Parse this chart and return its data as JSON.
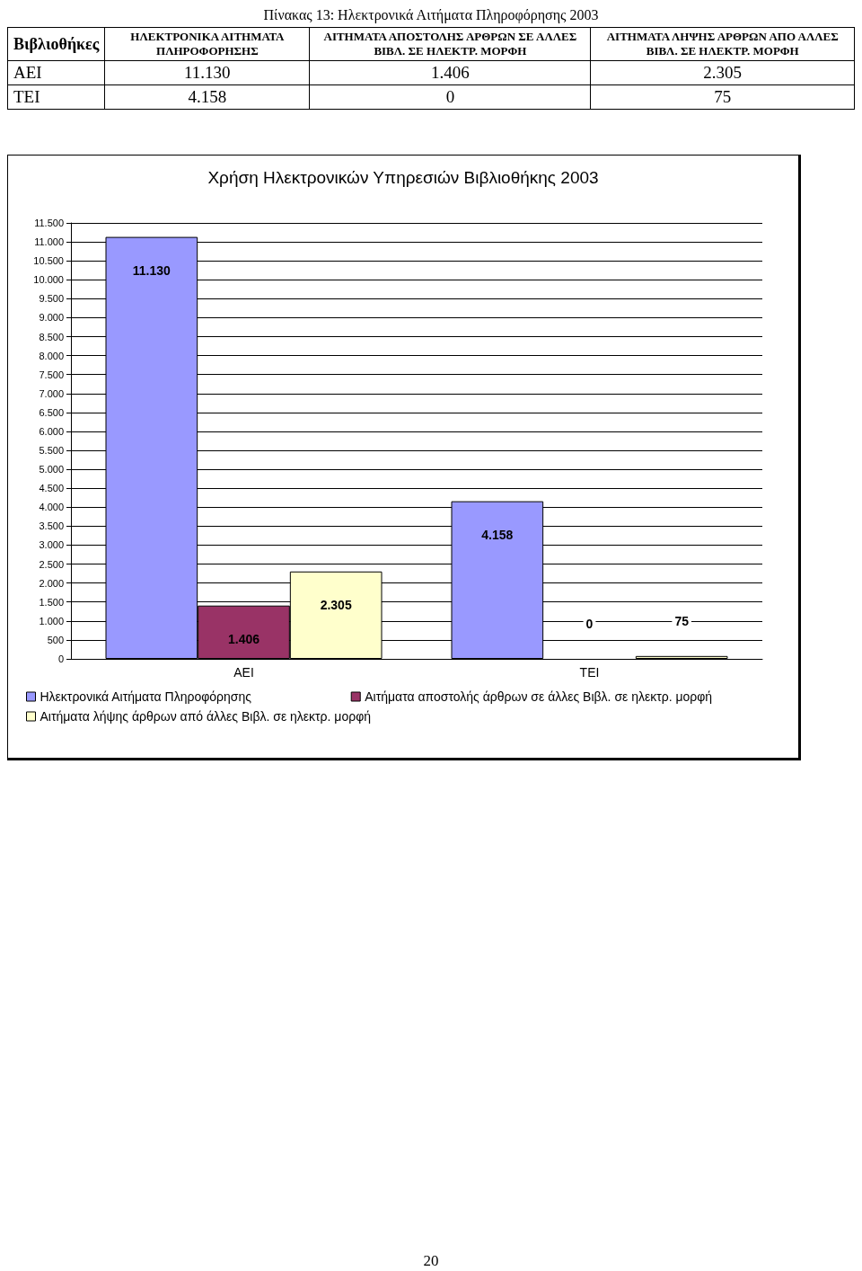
{
  "chart_data": {
    "type": "bar",
    "title": "Χρήση Ηλεκτρονικών Υπηρεσιών Βιβλιοθήκης 2003",
    "subtitle": "Πίνακας 13: Ηλεκτρονικά Αιτήματα Πληροφόρησης 2003",
    "annotations": [
      "Βιβλιοθήκες",
      "ΗΛΕΚΤΡΟΝΙΚΑ ΑΙΤΗΜΑΤΑ ΠΛΗΡΟΦΟΡΗΣΗΣ",
      "ΑΙΤΗΜΑΤΑ ΑΠΟΣΤΟΛΗΣ ΑΡΘΡΩΝ ΣΕ ΑΛΛΕΣ ΒΙΒΛ. ΣΕ ΗΛΕΚΤΡ. ΜΟΡΦΗ",
      "ΑΙΤΗΜΑΤΑ ΛΗΨΗΣ ΑΡΘΡΩΝ ΑΠΟ ΑΛΛΕΣ ΒΙΒΛ. ΣΕ ΗΛΕΚΤΡ. ΜΟΡΦΗ",
      "20"
    ],
    "categories": [
      "ΑΕΙ",
      "ΤΕΙ"
    ],
    "series": [
      {
        "name": "Ηλεκτρονικά Αιτήματα Πληροφόρησης",
        "color": "#9999ff",
        "values": [
          11130,
          4158
        ],
        "value_labels": [
          "11.130",
          "4.158"
        ]
      },
      {
        "name": "Αιτήματα αποστολής άρθρων σε άλλες Βιβλ. σε ηλεκτρ. μορφή",
        "color": "#993366",
        "values": [
          1406,
          0
        ],
        "value_labels": [
          "1.406",
          "0"
        ]
      },
      {
        "name": "Αιτήματα λήψης άρθρων από άλλες Βιβλ. σε ηλεκτρ. μορφή",
        "color": "#ffffcc",
        "values": [
          2305,
          75
        ],
        "value_labels": [
          "2.305",
          "75"
        ]
      }
    ],
    "ylim": [
      0,
      11500
    ],
    "yticks": [
      0,
      500,
      {
        "value": 1000,
        "label": "1.000"
      },
      {
        "value": 1500,
        "label": "1.500"
      },
      {
        "value": 2000,
        "label": "2.000"
      },
      {
        "value": 2500,
        "label": "2.500"
      },
      {
        "value": 3000,
        "label": "3.000"
      },
      {
        "value": 3500,
        "label": "3.500"
      },
      {
        "value": 4000,
        "label": "4.000"
      },
      {
        "value": 4500,
        "label": "4.500"
      },
      {
        "value": 5000,
        "label": "5.000"
      },
      {
        "value": 5500,
        "label": "5.500"
      },
      {
        "value": 6000,
        "label": "6.000"
      },
      {
        "value": 6500,
        "label": "6.500"
      },
      {
        "value": 7000,
        "label": "7.000"
      },
      {
        "value": 7500,
        "label": "7.500"
      },
      {
        "value": 8000,
        "label": "8.000"
      },
      {
        "value": 8500,
        "label": "8.500"
      },
      {
        "value": 9000,
        "label": "9.000"
      },
      {
        "value": 9500,
        "label": "9.500"
      },
      {
        "value": 10000,
        "label": "10.000"
      },
      {
        "value": 10500,
        "label": "10.500"
      },
      {
        "value": 11000,
        "label": "11.000"
      },
      {
        "value": 11500,
        "label": "11.500"
      }
    ],
    "grid": "y",
    "legend": "bottom"
  }
}
